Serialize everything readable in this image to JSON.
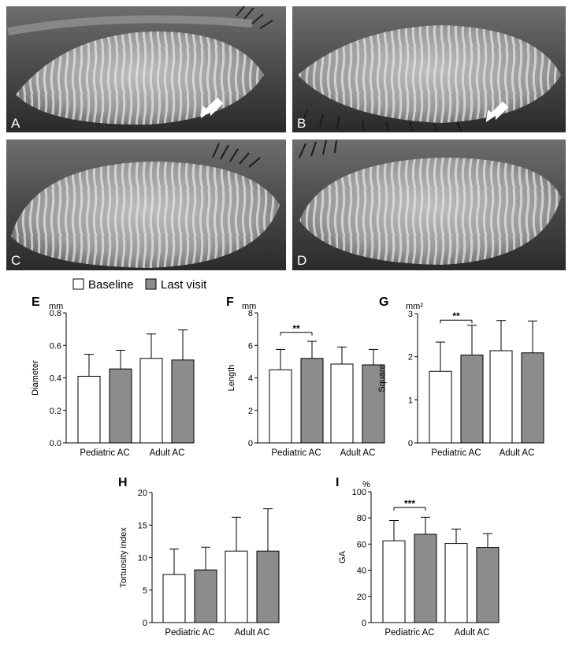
{
  "photos": [
    {
      "letter": "A",
      "arrow": true
    },
    {
      "letter": "B",
      "arrow": true
    },
    {
      "letter": "C",
      "arrow": false
    },
    {
      "letter": "D",
      "arrow": false
    }
  ],
  "legend": {
    "items": [
      {
        "label": "Baseline",
        "color": "#ffffff"
      },
      {
        "label": "Last visit",
        "color": "#8c8c8c"
      }
    ]
  },
  "chart_data": [
    {
      "letter": "E",
      "type": "bar",
      "unit": "mm",
      "ylabel": "Diameter",
      "ylim": [
        0,
        0.8
      ],
      "yticks": [
        "0.0",
        "0.2",
        "0.4",
        "0.6",
        "0.8"
      ],
      "ytick_values": [
        0,
        0.2,
        0.4,
        0.6,
        0.8
      ],
      "categories": [
        "Pediatric AC",
        "Adult AC"
      ],
      "series": [
        {
          "name": "Baseline",
          "values": [
            0.41,
            0.52
          ],
          "errors": [
            0.135,
            0.15
          ]
        },
        {
          "name": "Last visit",
          "values": [
            0.455,
            0.51
          ],
          "errors": [
            0.115,
            0.185
          ]
        }
      ],
      "significance": []
    },
    {
      "letter": "F",
      "type": "bar",
      "unit": "mm",
      "ylabel": "Length",
      "ylim": [
        0,
        8
      ],
      "yticks": [
        "0",
        "2",
        "4",
        "6",
        "8"
      ],
      "ytick_values": [
        0,
        2,
        4,
        6,
        8
      ],
      "categories": [
        "Pediatric AC",
        "Adult AC"
      ],
      "series": [
        {
          "name": "Baseline",
          "values": [
            4.5,
            4.85
          ],
          "errors": [
            1.25,
            1.05
          ]
        },
        {
          "name": "Last visit",
          "values": [
            5.2,
            4.8
          ],
          "errors": [
            1.05,
            0.95
          ]
        }
      ],
      "significance": [
        {
          "category": 0,
          "label": "**",
          "y": 6.8
        }
      ]
    },
    {
      "letter": "G",
      "type": "bar",
      "unit": "mm²",
      "ylabel": "Square",
      "ylim": [
        0,
        3
      ],
      "yticks": [
        "0",
        "1",
        "2",
        "3"
      ],
      "ytick_values": [
        0,
        1,
        2,
        3
      ],
      "categories": [
        "Pediatric AC",
        "Adult AC"
      ],
      "series": [
        {
          "name": "Baseline",
          "values": [
            1.66,
            2.14
          ],
          "errors": [
            0.68,
            0.7
          ]
        },
        {
          "name": "Last visit",
          "values": [
            2.04,
            2.09
          ],
          "errors": [
            0.69,
            0.74
          ]
        }
      ],
      "significance": [
        {
          "category": 0,
          "label": "**",
          "y": 2.85
        }
      ]
    },
    {
      "letter": "H",
      "type": "bar",
      "unit": "",
      "ylabel": "Tortuosity index",
      "ylim": [
        0,
        20
      ],
      "yticks": [
        "0",
        "5",
        "10",
        "15",
        "20"
      ],
      "ytick_values": [
        0,
        5,
        10,
        15,
        20
      ],
      "categories": [
        "Pediatric AC",
        "Adult AC"
      ],
      "series": [
        {
          "name": "Baseline",
          "values": [
            7.4,
            11.0
          ],
          "errors": [
            3.9,
            5.2
          ]
        },
        {
          "name": "Last visit",
          "values": [
            8.1,
            11.0
          ],
          "errors": [
            3.5,
            6.5
          ]
        }
      ],
      "significance": []
    },
    {
      "letter": "I",
      "type": "bar",
      "unit": "%",
      "ylabel": "GA",
      "ylim": [
        0,
        100
      ],
      "yticks": [
        "0",
        "20",
        "40",
        "60",
        "80",
        "100"
      ],
      "ytick_values": [
        0,
        20,
        40,
        60,
        80,
        100
      ],
      "categories": [
        "Pediatric AC",
        "Adult AC"
      ],
      "series": [
        {
          "name": "Baseline",
          "values": [
            62.5,
            60.5
          ],
          "errors": [
            15.5,
            11.0
          ]
        },
        {
          "name": "Last visit",
          "values": [
            67.5,
            57.5
          ],
          "errors": [
            13.0,
            10.5
          ]
        }
      ],
      "significance": [
        {
          "category": 0,
          "label": "***",
          "y": 88
        }
      ]
    }
  ]
}
